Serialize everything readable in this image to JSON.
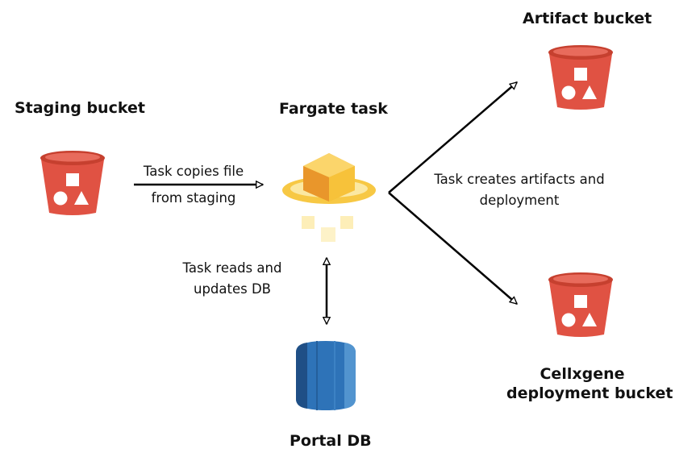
{
  "colors": {
    "bucket_red": "#e05243",
    "bucket_dark": "#b3392c",
    "fargate_gold": "#f5b628",
    "db_blue": "#2e73b8",
    "arrow": "#000000"
  },
  "nodes": {
    "staging_bucket": {
      "title": "Staging bucket",
      "icon": "s3-bucket-icon"
    },
    "fargate_task": {
      "title": "Fargate task",
      "icon": "fargate-icon"
    },
    "artifact_bucket": {
      "title": "Artifact bucket",
      "icon": "s3-bucket-icon"
    },
    "cellxgene_bucket": {
      "title_line1": "Cellxgene",
      "title_line2": "deployment bucket",
      "icon": "s3-bucket-icon"
    },
    "portal_db": {
      "title": "Portal DB",
      "icon": "rds-database-icon"
    }
  },
  "edges": {
    "copy_from_staging": {
      "line1": "Task copies file",
      "line2": "from staging"
    },
    "reads_updates_db": {
      "line1": "Task reads and",
      "line2": "updates DB"
    },
    "creates_artifacts": {
      "line1": "Task creates artifacts and",
      "line2": "deployment"
    }
  }
}
